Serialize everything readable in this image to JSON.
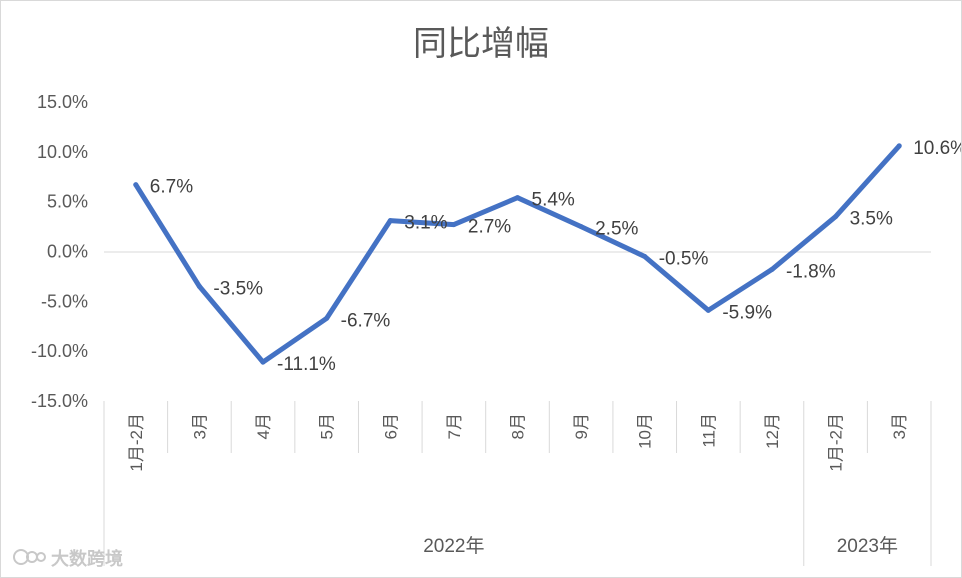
{
  "chart_data": {
    "type": "line",
    "title": "同比增幅",
    "categories": [
      "1月-2月",
      "3月",
      "4月",
      "5月",
      "6月",
      "7月",
      "8月",
      "9月",
      "10月",
      "11月",
      "12月",
      "1月-2月",
      "3月"
    ],
    "category_groups": [
      {
        "label": "2022年",
        "count": 11
      },
      {
        "label": "2023年",
        "count": 2
      }
    ],
    "series": [
      {
        "values": [
          6.7,
          -3.5,
          -11.1,
          -6.7,
          3.1,
          2.7,
          5.4,
          2.5,
          -0.5,
          -5.9,
          -1.8,
          3.5,
          10.6
        ],
        "labels": [
          "6.7%",
          "-3.5%",
          "-11.1%",
          "-6.7%",
          "3.1%",
          "2.7%",
          "5.4%",
          "2.5%",
          "-0.5%",
          "-5.9%",
          "-1.8%",
          "3.5%",
          "10.6%"
        ]
      }
    ],
    "ylim": [
      -15,
      15
    ],
    "yticks": [
      15,
      10,
      5,
      0,
      -5,
      -10,
      -15
    ],
    "ytick_labels": [
      "15.0%",
      "10.0%",
      "5.0%",
      "0.0%",
      "-5.0%",
      "-10.0%",
      "-15.0%"
    ],
    "line_color": "#4472c4",
    "gridlines": false
  },
  "watermark": {
    "text": "大数跨境"
  }
}
